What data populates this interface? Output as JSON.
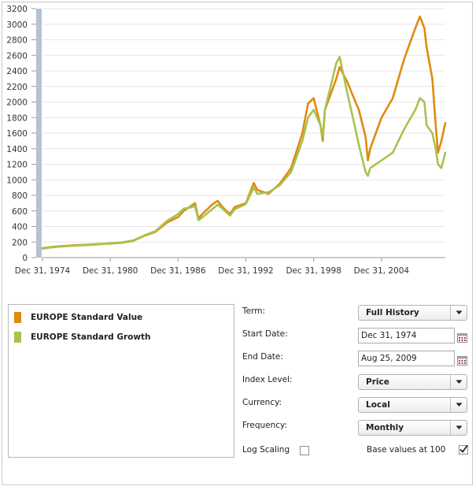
{
  "chart_data": {
    "type": "line",
    "x_tick_labels": [
      "Dec 31, 1974",
      "Dec 31, 1980",
      "Dec 31, 1986",
      "Dec 31, 1992",
      "Dec 31, 1998",
      "Dec 31, 2004"
    ],
    "x_tick_years": [
      1974.0,
      1980.0,
      1986.0,
      1992.0,
      1998.0,
      2004.0
    ],
    "xlim": [
      1974.0,
      2009.65
    ],
    "ylim": [
      0,
      3200
    ],
    "y_ticks": [
      0,
      200,
      400,
      600,
      800,
      1000,
      1200,
      1400,
      1600,
      1800,
      2000,
      2200,
      2400,
      2600,
      2800,
      3000,
      3200
    ],
    "grid": "horizontal",
    "series": [
      {
        "name": "EUROPE Standard Value",
        "color": "#e08a10",
        "x": [
          1974.0,
          1975.0,
          1976.0,
          1977.0,
          1978.0,
          1979.0,
          1980.0,
          1981.0,
          1982.0,
          1983.0,
          1984.0,
          1985.0,
          1986.0,
          1986.5,
          1987.0,
          1987.5,
          1987.8,
          1988.0,
          1989.0,
          1989.5,
          1990.0,
          1990.6,
          1991.0,
          1992.0,
          1992.7,
          1993.0,
          1994.0,
          1995.0,
          1996.0,
          1997.0,
          1997.5,
          1998.0,
          1998.6,
          1998.8,
          1999.0,
          2000.0,
          2000.3,
          2001.0,
          2001.7,
          2002.0,
          2002.6,
          2002.8,
          2003.0,
          2003.5,
          2004.0,
          2005.0,
          2006.0,
          2007.0,
          2007.4,
          2007.8,
          2008.0,
          2008.5,
          2008.8,
          2009.0,
          2009.3,
          2009.65
        ],
        "y": [
          120,
          140,
          150,
          160,
          165,
          175,
          180,
          190,
          215,
          280,
          330,
          450,
          520,
          600,
          650,
          700,
          500,
          540,
          680,
          730,
          640,
          560,
          650,
          700,
          960,
          870,
          820,
          950,
          1150,
          1600,
          1980,
          2050,
          1700,
          1500,
          1900,
          2300,
          2450,
          2250,
          2000,
          1900,
          1550,
          1250,
          1400,
          1600,
          1800,
          2050,
          2550,
          2950,
          3100,
          2950,
          2700,
          2300,
          1700,
          1350,
          1500,
          1730
        ]
      },
      {
        "name": "EUROPE Standard Growth",
        "color": "#a8c34f",
        "x": [
          1974.0,
          1975.0,
          1976.0,
          1977.0,
          1978.0,
          1979.0,
          1980.0,
          1981.0,
          1982.0,
          1983.0,
          1984.0,
          1985.0,
          1986.0,
          1986.5,
          1987.0,
          1987.5,
          1987.8,
          1988.0,
          1989.0,
          1989.5,
          1990.0,
          1990.6,
          1991.0,
          1992.0,
          1992.7,
          1993.0,
          1994.0,
          1995.0,
          1996.0,
          1997.0,
          1997.5,
          1998.0,
          1998.6,
          1998.8,
          1999.0,
          2000.0,
          2000.3,
          2001.0,
          2001.7,
          2002.0,
          2002.6,
          2002.8,
          2003.0,
          2003.5,
          2004.0,
          2005.0,
          2006.0,
          2007.0,
          2007.4,
          2007.8,
          2008.0,
          2008.5,
          2008.8,
          2009.0,
          2009.3,
          2009.65
        ],
        "y": [
          115,
          135,
          145,
          155,
          160,
          170,
          185,
          195,
          220,
          285,
          340,
          470,
          560,
          630,
          640,
          660,
          480,
          500,
          620,
          680,
          620,
          540,
          620,
          690,
          900,
          820,
          840,
          930,
          1100,
          1500,
          1800,
          1900,
          1700,
          1550,
          1900,
          2500,
          2580,
          2100,
          1650,
          1450,
          1100,
          1050,
          1150,
          1200,
          1250,
          1350,
          1650,
          1900,
          2050,
          2000,
          1700,
          1600,
          1400,
          1200,
          1150,
          1350
        ]
      }
    ]
  },
  "legend": [
    {
      "label": "EUROPE Standard Value",
      "color": "#e08a10"
    },
    {
      "label": "EUROPE Standard Growth",
      "color": "#a8c34f"
    }
  ],
  "controls": {
    "term_label": "Term:",
    "term_value": "Full History",
    "start_date_label": "Start Date:",
    "start_date_value": "Dec 31, 1974",
    "end_date_label": "End Date:",
    "end_date_value": "Aug 25, 2009",
    "index_level_label": "Index Level:",
    "index_level_value": "Price",
    "currency_label": "Currency:",
    "currency_value": "Local",
    "frequency_label": "Frequency:",
    "frequency_value": "Monthly",
    "log_scaling_label": "Log Scaling",
    "log_scaling_checked": false,
    "base_values_label": "Base values at 100",
    "base_values_checked": true
  },
  "icons": {
    "dropdown": "chevron-down-icon",
    "calendar": "calendar-icon",
    "checkmark": "check-icon"
  }
}
